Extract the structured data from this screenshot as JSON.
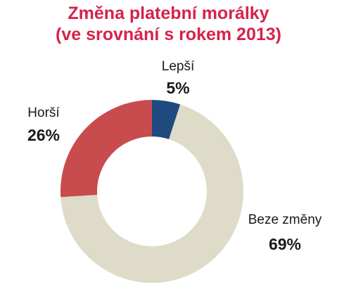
{
  "title_line1": "Změna platební morálky",
  "title_line2": "(ve srovnání s rokem 2013)",
  "chart_data": {
    "type": "pie",
    "style": "donut",
    "title": "Změna platební morálky (ve srovnání s rokem 2013)",
    "slices": [
      {
        "label": "Lepší",
        "value": 5,
        "value_label": "5%",
        "color": "#1f4a7f"
      },
      {
        "label": "Beze změny",
        "value": 69,
        "value_label": "69%",
        "color": "#dedbc8"
      },
      {
        "label": "Horší",
        "value": 26,
        "value_label": "26%",
        "color": "#c84b4d"
      }
    ]
  }
}
